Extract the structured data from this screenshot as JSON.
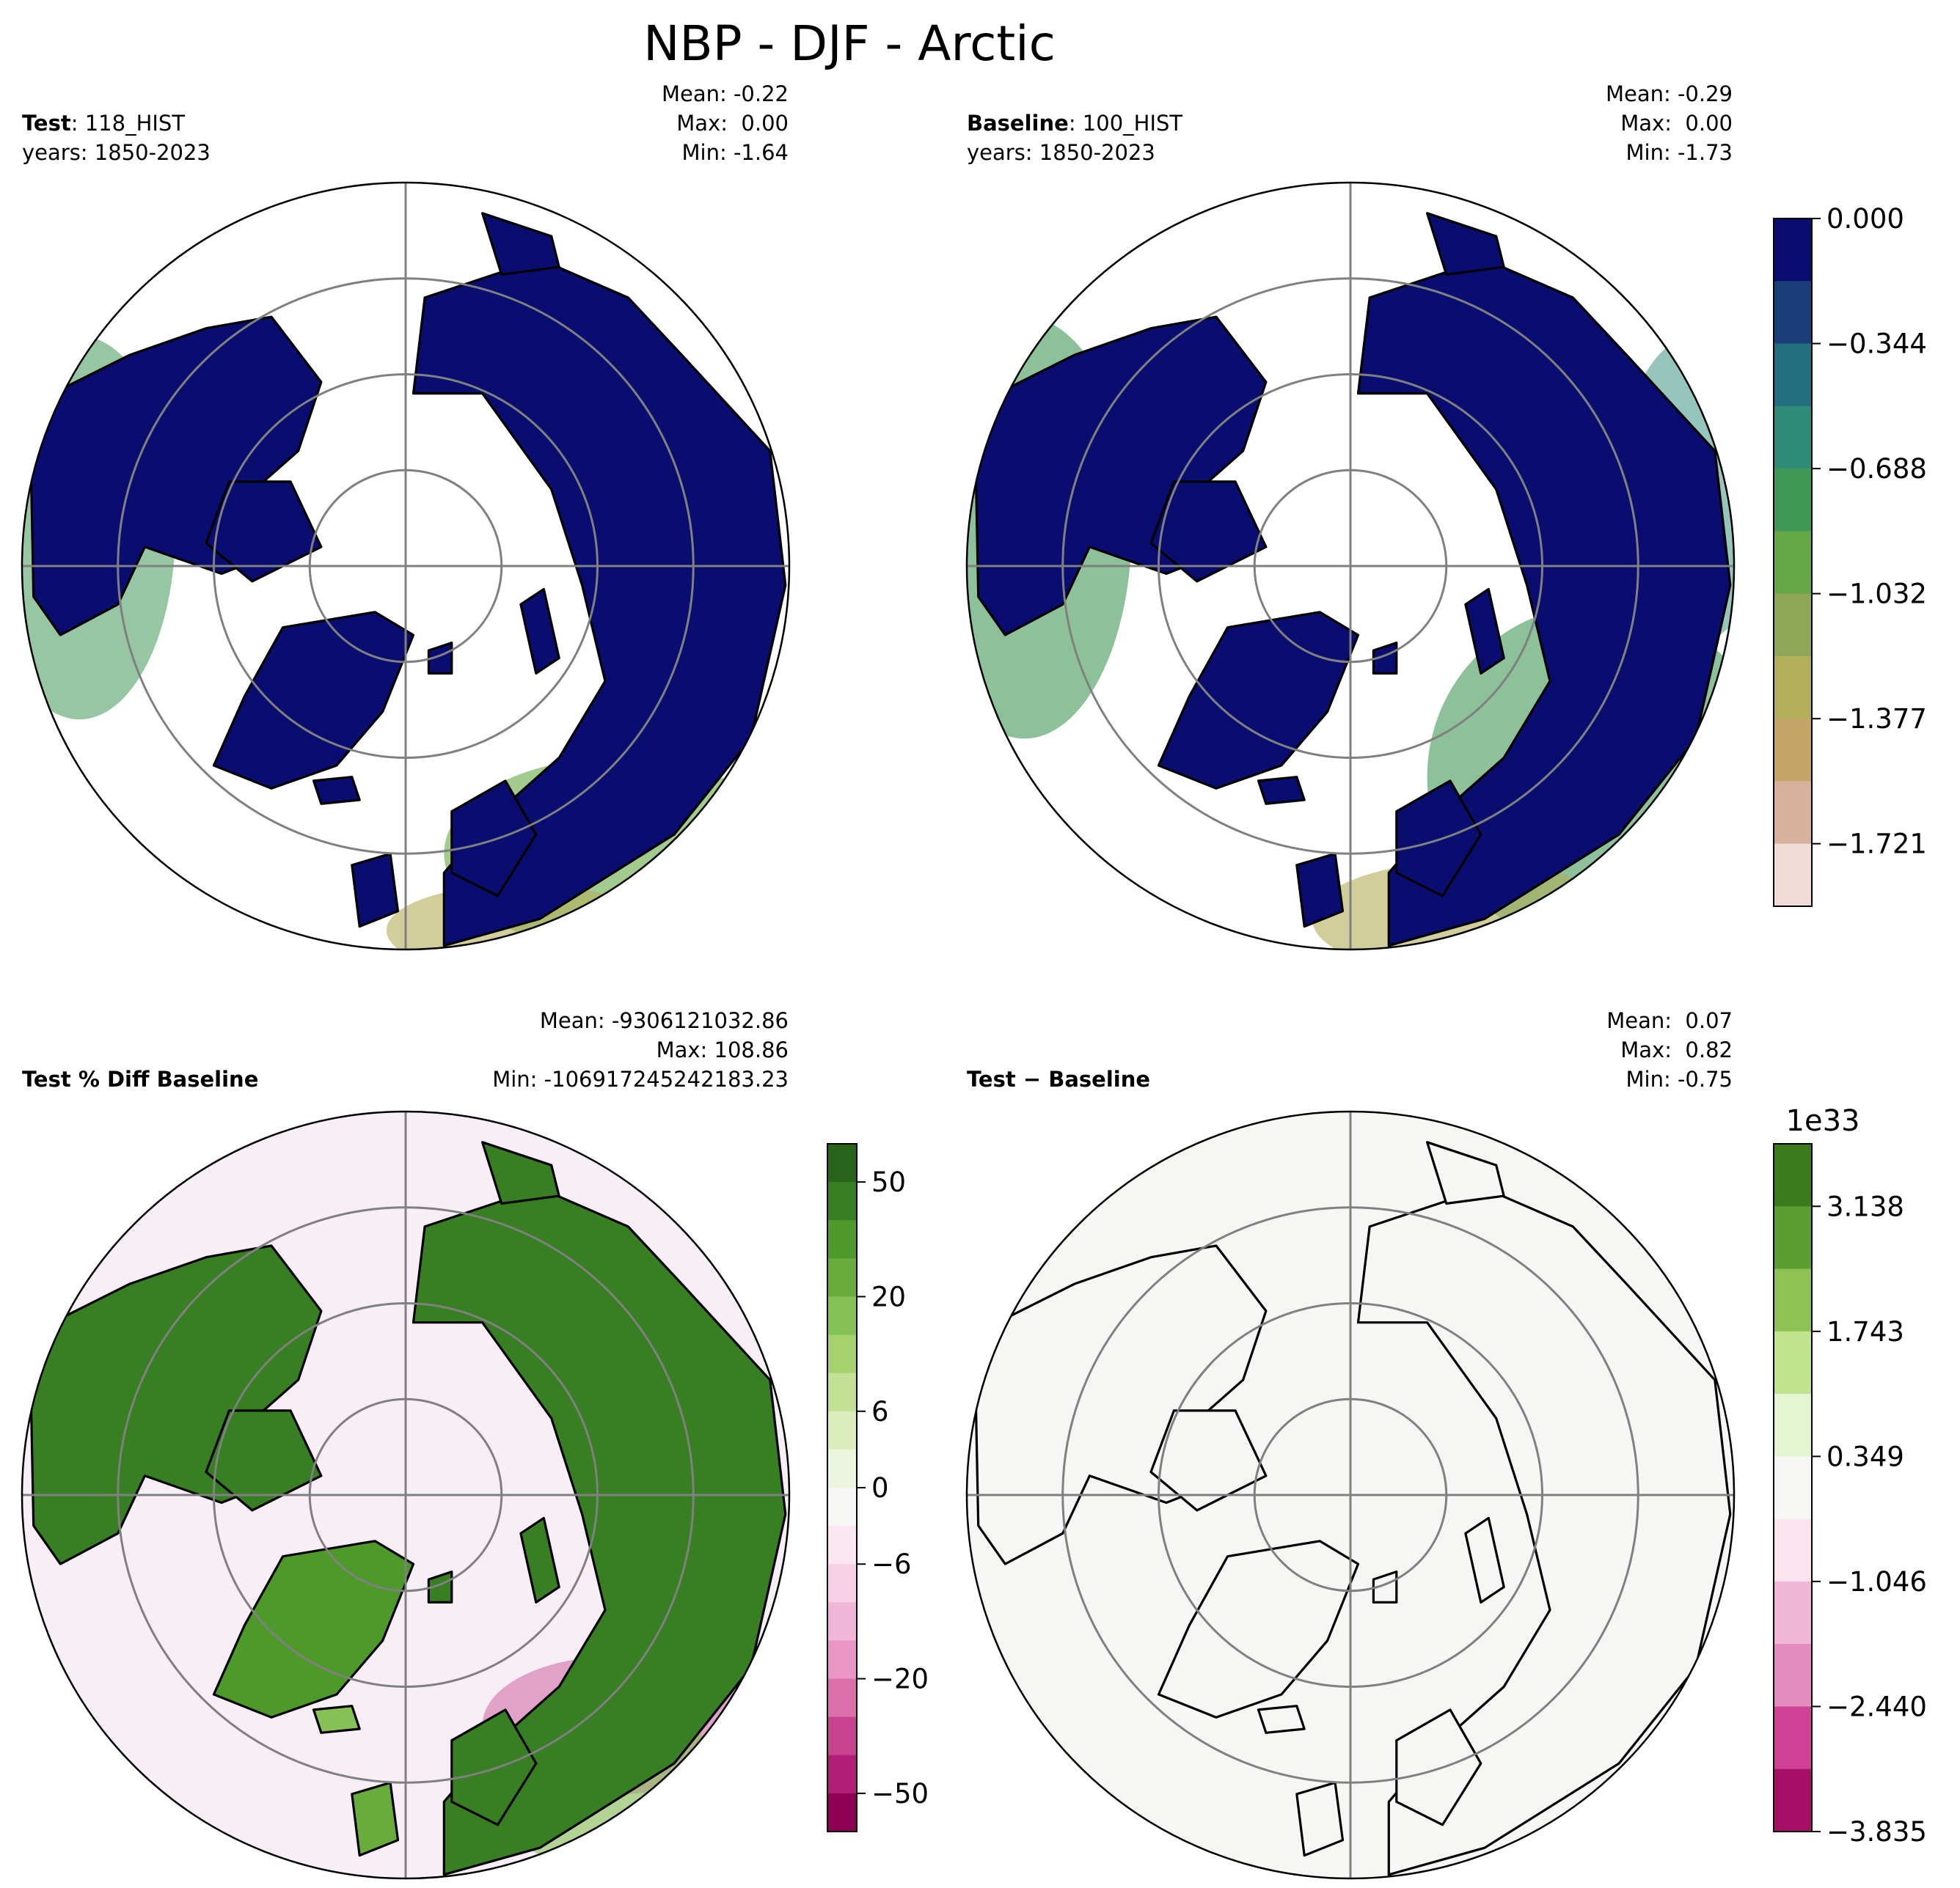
{
  "figure": {
    "title": "NBP - DJF - Arctic"
  },
  "chart_data": [
    {
      "type": "heatmap",
      "projection": "north-polar-stereographic",
      "panel": "test",
      "label_bold": "Test",
      "label_rest": ": 118_HIST",
      "years": "years: 1850-2023",
      "stats": [
        "Mean: -0.22",
        "Max:  0.00",
        "Min: -1.64"
      ],
      "legend": "right, shared with baseline panel",
      "grid": true
    },
    {
      "type": "heatmap",
      "projection": "north-polar-stereographic",
      "panel": "baseline",
      "label_bold": "Baseline",
      "label_rest": ": 100_HIST",
      "years": "years: 1850-2023",
      "stats": [
        "Mean: -0.29",
        "Max:  0.00",
        "Min: -1.73"
      ],
      "legend": "right",
      "grid": true,
      "colorbar": {
        "ticks": [
          "0.000",
          "−0.344",
          "−0.688",
          "−1.032",
          "−1.377",
          "−1.721"
        ],
        "colors": [
          "#0a0d70",
          "#1a3f78",
          "#236f80",
          "#2e8b78",
          "#3f9855",
          "#64a846",
          "#8ea658",
          "#b3ae5a",
          "#c5a468",
          "#d6b19c",
          "#f3dcd8"
        ]
      }
    },
    {
      "type": "heatmap",
      "projection": "north-polar-stereographic",
      "panel": "percent-diff",
      "label_bold": "Test % Diff Baseline",
      "stats": [
        "Mean: -9306121032.86",
        "Max: 108.86",
        "Min: -106917245242183.23"
      ],
      "legend": "right",
      "grid": true,
      "colorbar": {
        "ticks": [
          "50",
          "20",
          "6",
          "0",
          "−6",
          "−20",
          "−50"
        ],
        "colors": [
          "#276419",
          "#377f22",
          "#4d9a2a",
          "#68ad3c",
          "#86c155",
          "#a6d26e",
          "#c3e194",
          "#dbedb8",
          "#ecf5dd",
          "#f6f6f4",
          "#fbe6f2",
          "#f7d2e7",
          "#f0b6d8",
          "#e796c6",
          "#db6fab",
          "#c8438e",
          "#b01e76",
          "#8e0152"
        ]
      }
    },
    {
      "type": "heatmap",
      "projection": "north-polar-stereographic",
      "panel": "difference",
      "label_bold": "Test",
      "label_rest": " − Baseline",
      "stats": [
        "Mean:  0.07",
        "Max:  0.82",
        "Min: -0.75"
      ],
      "legend": "right",
      "grid": true,
      "colorbar": {
        "scale_label": "1e33",
        "ticks": [
          "3.138",
          "1.743",
          "0.349",
          "−1.046",
          "−2.440",
          "−3.835"
        ],
        "colors": [
          "#3b7b1e",
          "#5a9e2f",
          "#8ec254",
          "#bde38c",
          "#e5f5d2",
          "#f7f7f5",
          "#fce3ee",
          "#f2b6d6",
          "#e48cc0",
          "#cf4196",
          "#a80f66"
        ]
      }
    }
  ]
}
